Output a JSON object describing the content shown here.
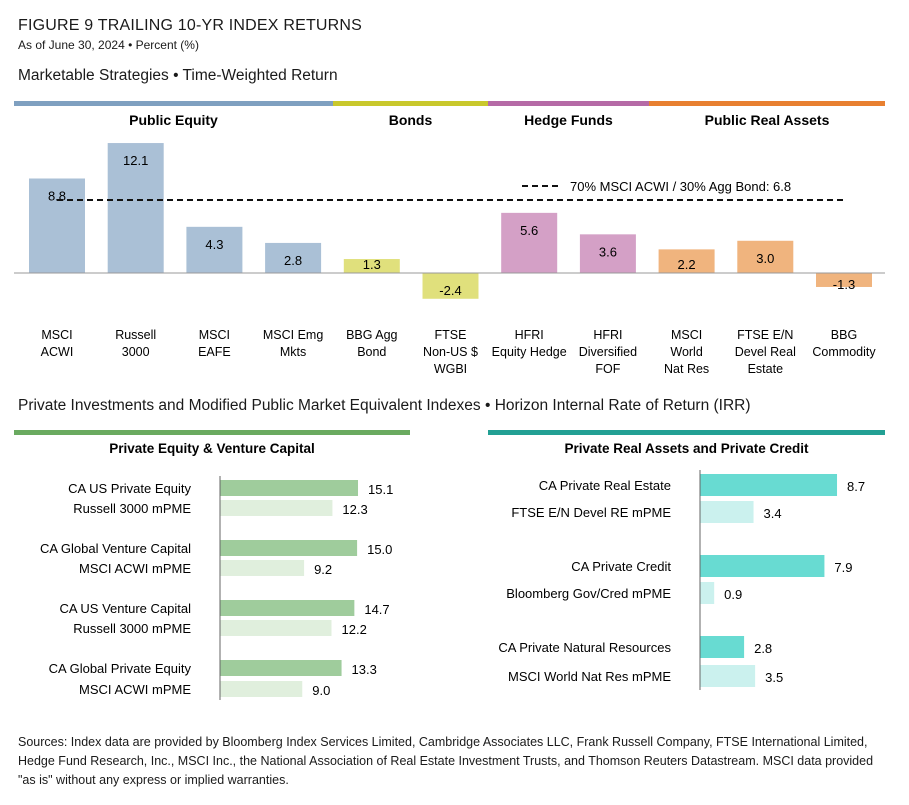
{
  "header": {
    "figure_title": "FIGURE 9   TRAILING 10-YR INDEX RETURNS",
    "subtitle": "As of June 30, 2024 • Percent (%)"
  },
  "sections": {
    "marketable": "Marketable Strategies • Time-Weighted Return",
    "private": "Private Investments and Modified Public Market Equivalent Indexes • Horizon Internal Rate of Return (IRR)"
  },
  "sources": "Sources: Index data are provided by Bloomberg Index Services Limited, Cambridge Associates LLC, Frank Russell Company, FTSE International Limited, Hedge Fund Research, Inc., MSCI Inc., the National Association of Real Estate Investment Trusts, and Thomson Reuters Datastream. MSCI data provided \"as is\" without any express or implied warranties.",
  "chart_data": [
    {
      "type": "bar",
      "groups": [
        {
          "name": "Public Equity",
          "header_color": "#7fa0c0",
          "bar_color": "#aac0d6",
          "categories": [
            "MSCI\nACWI",
            "Russell\n3000",
            "MSCI\nEAFE",
            "MSCI Emg\nMkts"
          ],
          "values": [
            8.8,
            12.1,
            4.3,
            2.8
          ]
        },
        {
          "name": "Bonds",
          "header_color": "#c9c82c",
          "bar_color": "#e0e07c",
          "categories": [
            "BBG Agg\nBond",
            "FTSE\nNon-US $\nWGBI"
          ],
          "values": [
            1.3,
            -2.4
          ]
        },
        {
          "name": "Hedge Funds",
          "header_color": "#b56aa6",
          "bar_color": "#d4a0c6",
          "categories": [
            "HFRI\nEquity Hedge",
            "HFRI\nDiversified\nFOF"
          ],
          "values": [
            5.6,
            3.6
          ]
        },
        {
          "name": "Public Real Assets",
          "header_color": "#e88030",
          "bar_color": "#f0b47e",
          "categories": [
            "MSCI\nWorld\nNat Res",
            "FTSE E/N\nDevel Real\nEstate",
            "BBG\nCommodity"
          ],
          "values": [
            2.2,
            3.0,
            -1.3
          ]
        }
      ],
      "reference_line": {
        "label": "70% MSCI ACWI / 30% Agg Bond: 6.8",
        "value": 6.8,
        "style": "dashed"
      }
    },
    {
      "type": "bar",
      "orientation": "horizontal",
      "title": "Private Equity & Venture Capital",
      "header_color": "#6aaa60",
      "colors": {
        "primary": "#9fcc9c",
        "benchmark": "#e0efdd"
      },
      "pairs": [
        {
          "primary": {
            "label": "CA US Private Equity",
            "value": 15.1
          },
          "benchmark": {
            "label": "Russell 3000 mPME",
            "value": 12.3
          }
        },
        {
          "primary": {
            "label": "CA Global Venture Capital",
            "value": 15.0
          },
          "benchmark": {
            "label": "MSCI ACWI mPME",
            "value": 9.2
          }
        },
        {
          "primary": {
            "label": "CA US Venture Capital",
            "value": 14.7
          },
          "benchmark": {
            "label": "Russell 3000 mPME",
            "value": 12.2
          }
        },
        {
          "primary": {
            "label": "CA Global Private Equity",
            "value": 13.3
          },
          "benchmark": {
            "label": "MSCI ACWI mPME",
            "value": 9.0
          }
        }
      ]
    },
    {
      "type": "bar",
      "orientation": "horizontal",
      "title": "Private Real Assets and Private Credit",
      "header_color": "#22a094",
      "colors": {
        "primary": "#68dbd2",
        "benchmark": "#cbf1ee"
      },
      "pairs": [
        {
          "primary": {
            "label": "CA Private Real Estate",
            "value": 8.7
          },
          "benchmark": {
            "label": "FTSE E/N Devel RE mPME",
            "value": 3.4
          }
        },
        {
          "primary": {
            "label": "CA Private Credit",
            "value": 7.9
          },
          "benchmark": {
            "label": "Bloomberg Gov/Cred mPME",
            "value": 0.9
          }
        },
        {
          "primary": {
            "label": "CA Private Natural Resources",
            "value": 2.8
          },
          "benchmark": {
            "label": "MSCI World Nat Res mPME",
            "value": 3.5
          }
        }
      ]
    }
  ]
}
